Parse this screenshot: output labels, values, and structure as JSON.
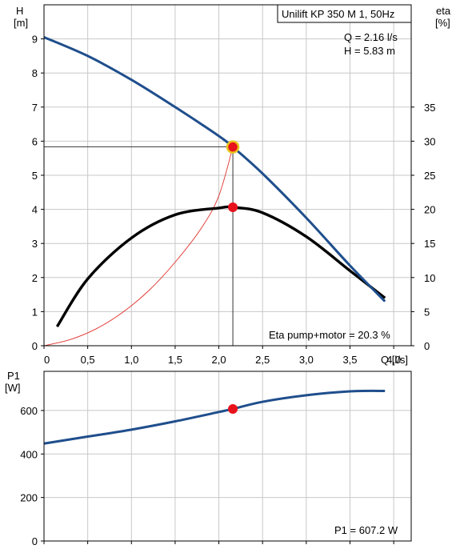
{
  "colors": {
    "background": "#ffffff",
    "grid": "#c8c8c8",
    "head_curve": "#1f4e8c",
    "eta_curve": "#000000",
    "system_curve": "#e0302a",
    "power_curve": "#1f4e8c",
    "duty_point": "#e8121c",
    "duty_ring": "#e8c61a"
  },
  "chart_data": [
    {
      "type": "line",
      "title": "Unilift KP 350 M 1, 50Hz",
      "xlabel": "Q [l/s]",
      "ylabel_left_line1": "H",
      "ylabel_left_line2": "[m]",
      "ylabel_right_line1": "eta",
      "ylabel_right_line2": "[%]",
      "xlim": [
        0,
        4.2
      ],
      "ylim": [
        0,
        10
      ],
      "ylim_right": [
        0,
        50
      ],
      "grid": true,
      "x_ticks": [
        "0",
        "0,5",
        "1,0",
        "1,5",
        "2,0",
        "2,5",
        "3,0",
        "3,5",
        "4,0"
      ],
      "y_ticks_left": [
        "0",
        "1",
        "2",
        "3",
        "4",
        "5",
        "6",
        "7",
        "8",
        "9"
      ],
      "y_ticks_right": [
        "0",
        "5",
        "10",
        "15",
        "20",
        "25",
        "30",
        "35"
      ],
      "annotations": {
        "q_readout": "Q = 2.16 l/s",
        "h_readout": "H = 5.83 m",
        "eta_readout": "Eta pump+motor = 20.3 %"
      },
      "duty_point": {
        "q": 2.16,
        "h": 5.83,
        "eta": 20.3
      },
      "series": [
        {
          "axis": "left",
          "x": [
            0,
            0.5,
            1.0,
            1.5,
            2.0,
            2.16,
            2.5,
            3.0,
            3.5,
            3.9
          ],
          "values": [
            9.05,
            8.5,
            7.8,
            7.0,
            6.15,
            5.83,
            5.05,
            3.75,
            2.35,
            1.3
          ]
        },
        {
          "axis": "right",
          "x": [
            0.15,
            0.5,
            1.0,
            1.5,
            2.0,
            2.16,
            2.5,
            3.0,
            3.5,
            3.9
          ],
          "values": [
            2.8,
            9.8,
            15.8,
            19.2,
            20.2,
            20.3,
            19.5,
            16.0,
            11.0,
            7.0
          ]
        },
        {
          "axis": "left",
          "x": [
            0,
            0.3,
            0.6,
            0.9,
            1.2,
            1.5,
            1.8,
            2.0,
            2.16
          ],
          "values": [
            0,
            0.18,
            0.5,
            0.98,
            1.62,
            2.45,
            3.45,
            4.4,
            5.83
          ]
        }
      ]
    },
    {
      "type": "line",
      "ylabel_line1": "P1",
      "ylabel_line2": "[W]",
      "xlim": [
        0,
        4.2
      ],
      "ylim": [
        0,
        780
      ],
      "grid": true,
      "y_ticks": [
        "0",
        "200",
        "400",
        "600"
      ],
      "annotations": {
        "p1_readout": "P1 = 607.2 W"
      },
      "duty_point": {
        "q": 2.16,
        "p1": 607.2
      },
      "series": [
        {
          "x": [
            0,
            0.5,
            1.0,
            1.5,
            2.0,
            2.16,
            2.5,
            3.0,
            3.5,
            3.9
          ],
          "values": [
            448,
            480,
            512,
            550,
            593,
            607.2,
            640,
            670,
            688,
            690
          ]
        }
      ]
    }
  ]
}
